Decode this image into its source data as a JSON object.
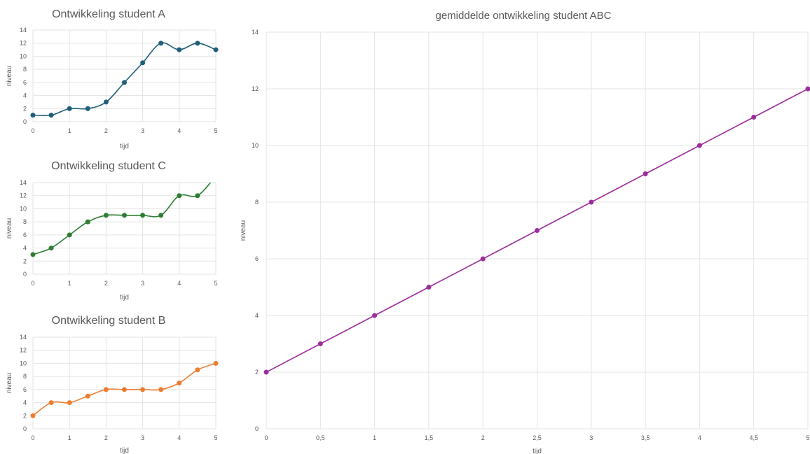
{
  "chart_data": [
    {
      "type": "line",
      "title": "Ontwikkeling student A",
      "xlabel": "tijd",
      "ylabel": "niveau",
      "x": [
        0,
        0.5,
        1,
        1.5,
        2,
        2.5,
        3,
        3.5,
        4,
        4.5,
        5
      ],
      "series": [
        {
          "values": [
            1,
            1,
            2,
            2,
            3,
            6,
            9,
            12,
            11,
            12,
            11
          ],
          "color": "#1f5f7a"
        }
      ],
      "xlim": [
        0,
        5
      ],
      "ylim": [
        0,
        14
      ],
      "xticks": [
        "0",
        "1",
        "2",
        "3",
        "4",
        "5"
      ],
      "yticks": [
        "0",
        "2",
        "4",
        "6",
        "8",
        "10",
        "12",
        "14"
      ],
      "grid": true,
      "smooth": true,
      "legend": "none"
    },
    {
      "type": "line",
      "title": "Ontwikkeling student C",
      "xlabel": "tijd",
      "ylabel": "niveau",
      "x": [
        0,
        0.5,
        1,
        1.5,
        2,
        2.5,
        3,
        3.5,
        4,
        4.5,
        5
      ],
      "series": [
        {
          "values": [
            3,
            4,
            6,
            8,
            9,
            9,
            9,
            9,
            12,
            12,
            15
          ],
          "color": "#2e7d32"
        }
      ],
      "xlim": [
        0,
        5
      ],
      "ylim": [
        0,
        14
      ],
      "xticks": [
        "0",
        "1",
        "2",
        "3",
        "4",
        "5"
      ],
      "yticks": [
        "0",
        "2",
        "4",
        "6",
        "8",
        "10",
        "12",
        "14"
      ],
      "grid": true,
      "smooth": true,
      "legend": "none"
    },
    {
      "type": "line",
      "title": "Ontwikkeling student B",
      "xlabel": "tijd",
      "ylabel": "niveau",
      "x": [
        0,
        0.5,
        1,
        1.5,
        2,
        2.5,
        3,
        3.5,
        4,
        4.5,
        5
      ],
      "series": [
        {
          "values": [
            2,
            4,
            4,
            5,
            6,
            6,
            6,
            6,
            7,
            9,
            10
          ],
          "color": "#ed7d31"
        }
      ],
      "xlim": [
        0,
        5
      ],
      "ylim": [
        0,
        14
      ],
      "xticks": [
        "0",
        "1",
        "2",
        "3",
        "4",
        "5"
      ],
      "yticks": [
        "0",
        "2",
        "4",
        "6",
        "8",
        "10",
        "12",
        "14"
      ],
      "grid": true,
      "smooth": true,
      "legend": "none"
    },
    {
      "type": "line",
      "title": "gemiddelde ontwikkeling student ABC",
      "xlabel": "tijd",
      "ylabel": "niveau",
      "x": [
        0,
        0.5,
        1,
        1.5,
        2,
        2.5,
        3,
        3.5,
        4,
        4.5,
        5
      ],
      "series": [
        {
          "values": [
            2,
            3,
            4,
            5,
            6,
            7,
            8,
            9,
            10,
            11,
            12
          ],
          "color": "#9c2d9c"
        }
      ],
      "xlim": [
        0,
        5
      ],
      "ylim": [
        0,
        14
      ],
      "xticks": [
        "0",
        "0,5",
        "1",
        "1,5",
        "2",
        "2,5",
        "3",
        "3,5",
        "4",
        "4,5",
        "5"
      ],
      "yticks": [
        "0",
        "2",
        "4",
        "6",
        "8",
        "10",
        "12",
        "14"
      ],
      "grid": true,
      "smooth": false,
      "legend": "none"
    }
  ]
}
